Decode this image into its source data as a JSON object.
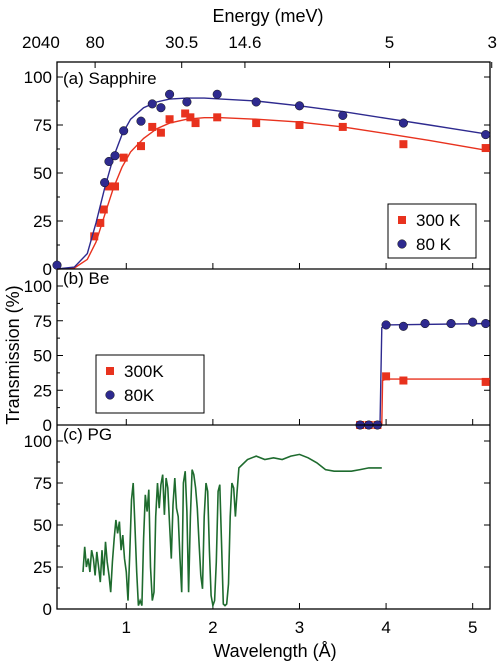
{
  "figure": {
    "top_axis_title": "Energy (meV)",
    "top_tick_labels": [
      "2040",
      "80",
      "30.5",
      "14.6",
      "5",
      "3"
    ],
    "top_tick_wavelengths": [
      0.2,
      0.64,
      1.64,
      2.37,
      4.04,
      5.22
    ],
    "x_label": "Wavelength (Å)",
    "y_label": "Transmission (%)",
    "x_tick_labels": [
      "1",
      "2",
      "3",
      "4",
      "5"
    ]
  },
  "colors": {
    "red": "#e8321e",
    "blue": "#2e2a8f",
    "green": "#1e6b2e",
    "frame": "#000000"
  },
  "chart_data": [
    {
      "type": "scatter",
      "panel_label": "(a) Sapphire",
      "xlim": [
        0.2,
        5.2
      ],
      "ylim": [
        0,
        108
      ],
      "yticks": [
        0,
        25,
        50,
        75,
        100
      ],
      "legend_position": "bottom-right",
      "series": [
        {
          "name": "300 K",
          "marker": "square",
          "color": "red",
          "x": [
            0.63,
            0.7,
            0.74,
            0.8,
            0.87,
            0.97,
            1.17,
            1.3,
            1.4,
            1.5,
            1.68,
            1.74,
            1.8,
            2.05,
            2.5,
            3.0,
            3.5,
            4.2,
            5.15
          ],
          "y": [
            17,
            24,
            31,
            43,
            43,
            58,
            64,
            74,
            71,
            78,
            81,
            79,
            76,
            79,
            76,
            75,
            74,
            65,
            63
          ],
          "fit_x": [
            0.2,
            0.4,
            0.55,
            0.65,
            0.75,
            0.85,
            0.95,
            1.05,
            1.2,
            1.35,
            1.5,
            1.7,
            1.9,
            2.1,
            2.5,
            3.0,
            3.5,
            4.0,
            4.5,
            5.2
          ],
          "fit_y": [
            0,
            0.5,
            5,
            14,
            28,
            42,
            53,
            61,
            68,
            73,
            76,
            78,
            78.8,
            78.8,
            78,
            76.5,
            74,
            70.5,
            67,
            61.5
          ]
        },
        {
          "name": "80 K",
          "marker": "circle",
          "color": "blue",
          "x": [
            0.2,
            0.75,
            0.8,
            0.87,
            0.97,
            1.17,
            1.3,
            1.4,
            1.5,
            1.7,
            2.05,
            2.5,
            3.0,
            3.5,
            4.2,
            5.15
          ],
          "y": [
            2,
            45,
            56,
            59,
            72,
            77,
            86,
            84,
            91,
            87,
            91,
            87,
            85,
            80,
            76,
            70
          ],
          "fit_x": [
            0.2,
            0.4,
            0.55,
            0.65,
            0.75,
            0.85,
            0.95,
            1.05,
            1.2,
            1.35,
            1.5,
            1.7,
            1.9,
            2.1,
            2.5,
            3.0,
            3.5,
            4.0,
            4.5,
            5.2
          ],
          "fit_y": [
            0,
            1,
            8,
            24,
            42,
            58,
            70,
            78,
            84,
            87,
            88.5,
            89,
            89,
            88.5,
            87.5,
            85,
            82,
            78.5,
            75,
            70
          ]
        }
      ]
    },
    {
      "type": "scatter",
      "panel_label": "(b) Be",
      "xlim": [
        0.2,
        5.2
      ],
      "ylim": [
        0,
        108
      ],
      "yticks": [
        0,
        25,
        50,
        75,
        100
      ],
      "legend_position": "bottom-left",
      "series": [
        {
          "name": "300K",
          "marker": "square",
          "color": "red",
          "x": [
            3.7,
            3.8,
            3.9,
            4.0,
            4.2,
            5.15
          ],
          "y": [
            0,
            0,
            0,
            35,
            32,
            31
          ],
          "fit_x": [
            3.7,
            3.95,
            3.96,
            4.0,
            5.2
          ],
          "fit_y": [
            0,
            0,
            32,
            33,
            33
          ]
        },
        {
          "name": "80K",
          "marker": "circle",
          "color": "blue",
          "x": [
            3.7,
            3.8,
            3.9,
            4.0,
            4.2,
            4.45,
            4.75,
            5.0,
            5.15
          ],
          "y": [
            0,
            0,
            0,
            72,
            71,
            73,
            73,
            74,
            73
          ],
          "fit_x": [
            3.7,
            3.93,
            3.95,
            4.0,
            5.2
          ],
          "fit_y": [
            0,
            0,
            70,
            72,
            73
          ]
        }
      ]
    },
    {
      "type": "line",
      "panel_label": "(c) PG",
      "xlim": [
        0.2,
        5.2
      ],
      "ylim": [
        0,
        108
      ],
      "yticks": [
        0,
        25,
        50,
        75,
        100
      ],
      "series": [
        {
          "color": "green",
          "x": [
            0.5,
            0.52,
            0.54,
            0.56,
            0.58,
            0.6,
            0.62,
            0.64,
            0.66,
            0.68,
            0.7,
            0.72,
            0.74,
            0.76,
            0.78,
            0.8,
            0.82,
            0.84,
            0.86,
            0.88,
            0.9,
            0.92,
            0.94,
            0.96,
            0.98,
            1.0,
            1.02,
            1.04,
            1.06,
            1.08,
            1.1,
            1.12,
            1.14,
            1.16,
            1.18,
            1.2,
            1.22,
            1.24,
            1.26,
            1.28,
            1.3,
            1.32,
            1.34,
            1.36,
            1.38,
            1.4,
            1.42,
            1.44,
            1.46,
            1.48,
            1.5,
            1.52,
            1.54,
            1.56,
            1.58,
            1.6,
            1.62,
            1.64,
            1.66,
            1.68,
            1.7,
            1.72,
            1.74,
            1.76,
            1.78,
            1.8,
            1.82,
            1.84,
            1.86,
            1.88,
            1.9,
            1.92,
            1.94,
            1.96,
            1.98,
            2.0,
            2.02,
            2.04,
            2.06,
            2.08,
            2.1,
            2.12,
            2.14,
            2.16,
            2.18,
            2.2,
            2.22,
            2.24,
            2.26,
            2.28,
            2.3,
            2.4,
            2.5,
            2.6,
            2.7,
            2.8,
            2.9,
            3.0,
            3.1,
            3.2,
            3.3,
            3.4,
            3.5,
            3.6,
            3.7,
            3.8,
            3.9,
            3.95
          ],
          "y": [
            22,
            37,
            25,
            30,
            22,
            35,
            30,
            20,
            34,
            25,
            16,
            35,
            20,
            40,
            28,
            20,
            10,
            28,
            42,
            53,
            45,
            52,
            35,
            44,
            30,
            22,
            5,
            32,
            65,
            75,
            50,
            22,
            2,
            5,
            2,
            42,
            68,
            58,
            71,
            25,
            5,
            10,
            55,
            75,
            60,
            74,
            80,
            56,
            78,
            72,
            50,
            30,
            62,
            78,
            60,
            55,
            30,
            10,
            75,
            82,
            58,
            10,
            55,
            83,
            80,
            72,
            60,
            40,
            20,
            12,
            55,
            75,
            70,
            35,
            8,
            2,
            5,
            28,
            70,
            74,
            40,
            3,
            2,
            3,
            15,
            55,
            75,
            72,
            55,
            70,
            84,
            89,
            91,
            89,
            90,
            89,
            91,
            92,
            90,
            87,
            83,
            82,
            82,
            82,
            83,
            84,
            84,
            84
          ]
        }
      ]
    }
  ]
}
